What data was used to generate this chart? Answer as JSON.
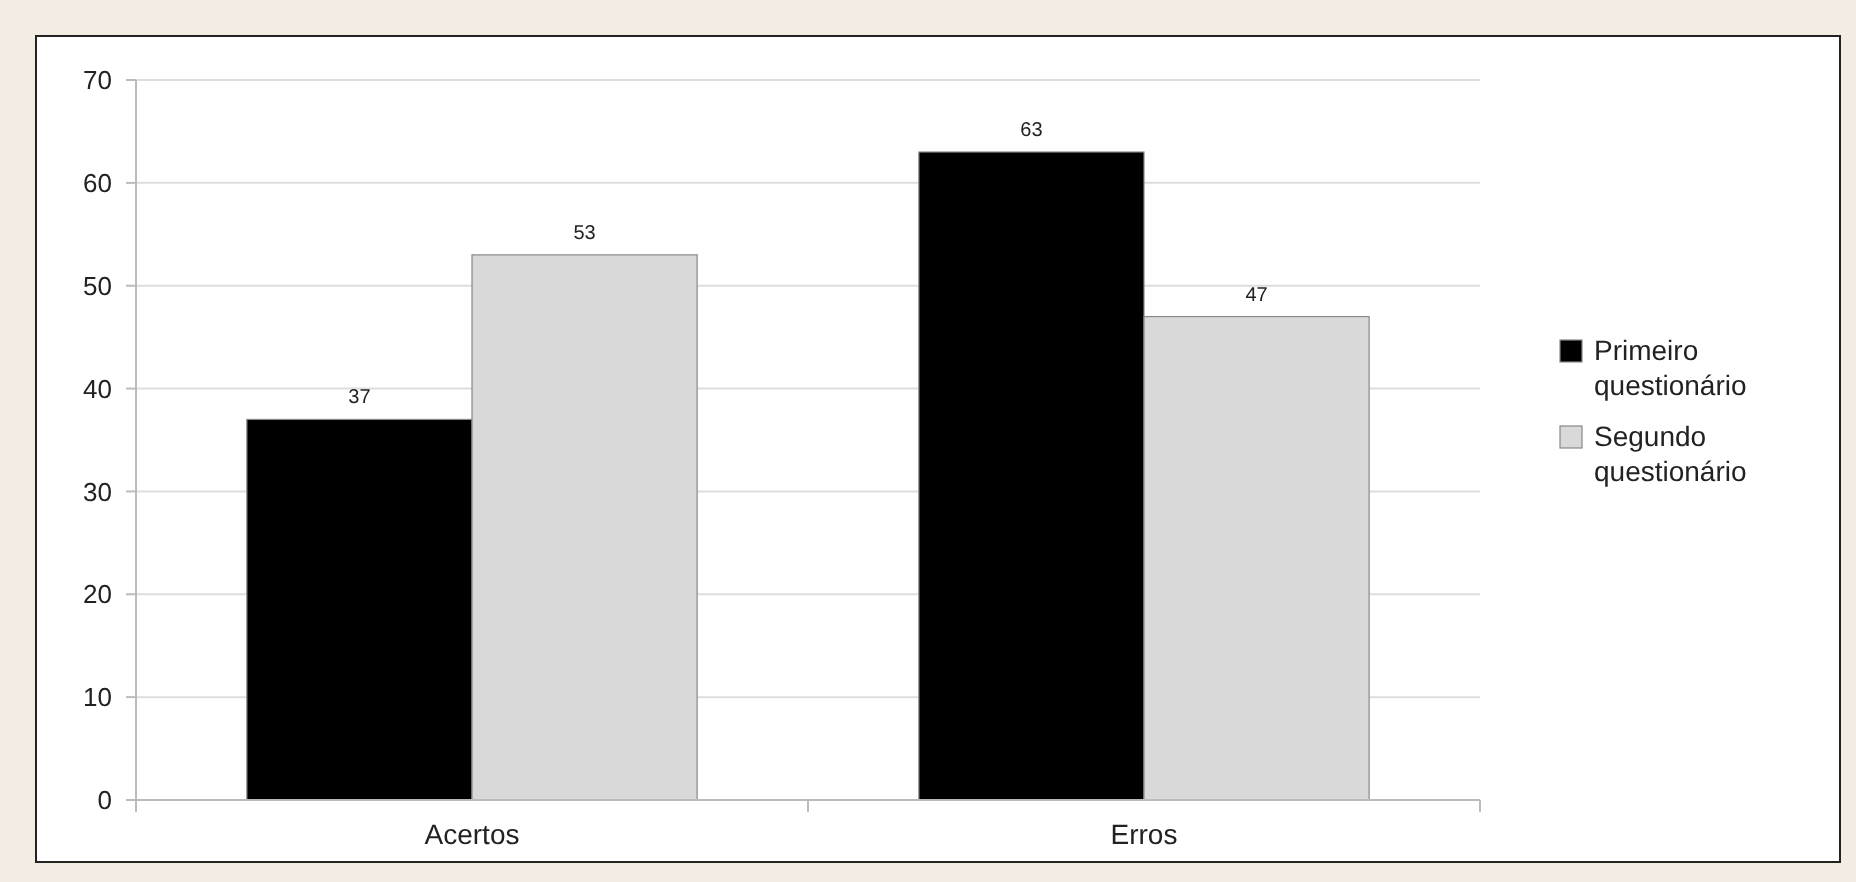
{
  "chart_data": {
    "type": "bar",
    "categories": [
      "Acertos",
      "Erros"
    ],
    "series": [
      {
        "name": "Primeiro questionário",
        "color": "#000000",
        "values": [
          37,
          63
        ]
      },
      {
        "name": "Segundo questionário",
        "color": "#d9d9d9",
        "values": [
          53,
          47
        ]
      }
    ],
    "ylim": [
      0,
      70
    ],
    "yticks": [
      0,
      10,
      20,
      30,
      40,
      50,
      60,
      70
    ],
    "grid": "y",
    "legend": "right",
    "data_labels": true
  }
}
